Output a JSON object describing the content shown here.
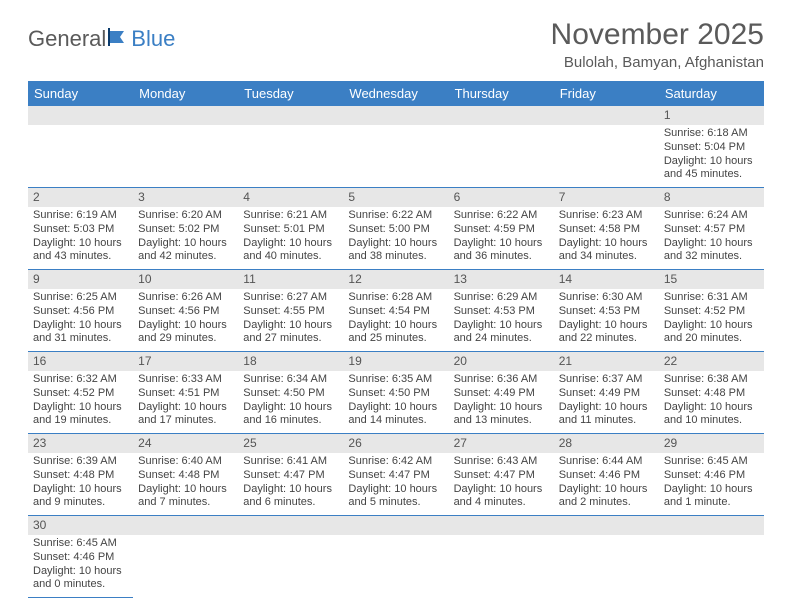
{
  "logo": {
    "text1": "General",
    "text2": "Blue"
  },
  "title": "November 2025",
  "location": "Bulolah, Bamyan, Afghanistan",
  "colors": {
    "header_bg": "#3b7fc4",
    "header_text": "#ffffff",
    "daynum_bg": "#e7e7e7",
    "cell_border": "#3b7fc4",
    "body_text": "#444444",
    "title_text": "#5a5a5a"
  },
  "fonts": {
    "title_size_pt": 22,
    "location_size_pt": 11,
    "dayhead_size_pt": 10,
    "cell_size_pt": 8
  },
  "weekdays": [
    "Sunday",
    "Monday",
    "Tuesday",
    "Wednesday",
    "Thursday",
    "Friday",
    "Saturday"
  ],
  "weeks": [
    [
      null,
      null,
      null,
      null,
      null,
      null,
      {
        "n": "1",
        "sunrise": "Sunrise: 6:18 AM",
        "sunset": "Sunset: 5:04 PM",
        "day1": "Daylight: 10 hours",
        "day2": "and 45 minutes."
      }
    ],
    [
      {
        "n": "2",
        "sunrise": "Sunrise: 6:19 AM",
        "sunset": "Sunset: 5:03 PM",
        "day1": "Daylight: 10 hours",
        "day2": "and 43 minutes."
      },
      {
        "n": "3",
        "sunrise": "Sunrise: 6:20 AM",
        "sunset": "Sunset: 5:02 PM",
        "day1": "Daylight: 10 hours",
        "day2": "and 42 minutes."
      },
      {
        "n": "4",
        "sunrise": "Sunrise: 6:21 AM",
        "sunset": "Sunset: 5:01 PM",
        "day1": "Daylight: 10 hours",
        "day2": "and 40 minutes."
      },
      {
        "n": "5",
        "sunrise": "Sunrise: 6:22 AM",
        "sunset": "Sunset: 5:00 PM",
        "day1": "Daylight: 10 hours",
        "day2": "and 38 minutes."
      },
      {
        "n": "6",
        "sunrise": "Sunrise: 6:22 AM",
        "sunset": "Sunset: 4:59 PM",
        "day1": "Daylight: 10 hours",
        "day2": "and 36 minutes."
      },
      {
        "n": "7",
        "sunrise": "Sunrise: 6:23 AM",
        "sunset": "Sunset: 4:58 PM",
        "day1": "Daylight: 10 hours",
        "day2": "and 34 minutes."
      },
      {
        "n": "8",
        "sunrise": "Sunrise: 6:24 AM",
        "sunset": "Sunset: 4:57 PM",
        "day1": "Daylight: 10 hours",
        "day2": "and 32 minutes."
      }
    ],
    [
      {
        "n": "9",
        "sunrise": "Sunrise: 6:25 AM",
        "sunset": "Sunset: 4:56 PM",
        "day1": "Daylight: 10 hours",
        "day2": "and 31 minutes."
      },
      {
        "n": "10",
        "sunrise": "Sunrise: 6:26 AM",
        "sunset": "Sunset: 4:56 PM",
        "day1": "Daylight: 10 hours",
        "day2": "and 29 minutes."
      },
      {
        "n": "11",
        "sunrise": "Sunrise: 6:27 AM",
        "sunset": "Sunset: 4:55 PM",
        "day1": "Daylight: 10 hours",
        "day2": "and 27 minutes."
      },
      {
        "n": "12",
        "sunrise": "Sunrise: 6:28 AM",
        "sunset": "Sunset: 4:54 PM",
        "day1": "Daylight: 10 hours",
        "day2": "and 25 minutes."
      },
      {
        "n": "13",
        "sunrise": "Sunrise: 6:29 AM",
        "sunset": "Sunset: 4:53 PM",
        "day1": "Daylight: 10 hours",
        "day2": "and 24 minutes."
      },
      {
        "n": "14",
        "sunrise": "Sunrise: 6:30 AM",
        "sunset": "Sunset: 4:53 PM",
        "day1": "Daylight: 10 hours",
        "day2": "and 22 minutes."
      },
      {
        "n": "15",
        "sunrise": "Sunrise: 6:31 AM",
        "sunset": "Sunset: 4:52 PM",
        "day1": "Daylight: 10 hours",
        "day2": "and 20 minutes."
      }
    ],
    [
      {
        "n": "16",
        "sunrise": "Sunrise: 6:32 AM",
        "sunset": "Sunset: 4:52 PM",
        "day1": "Daylight: 10 hours",
        "day2": "and 19 minutes."
      },
      {
        "n": "17",
        "sunrise": "Sunrise: 6:33 AM",
        "sunset": "Sunset: 4:51 PM",
        "day1": "Daylight: 10 hours",
        "day2": "and 17 minutes."
      },
      {
        "n": "18",
        "sunrise": "Sunrise: 6:34 AM",
        "sunset": "Sunset: 4:50 PM",
        "day1": "Daylight: 10 hours",
        "day2": "and 16 minutes."
      },
      {
        "n": "19",
        "sunrise": "Sunrise: 6:35 AM",
        "sunset": "Sunset: 4:50 PM",
        "day1": "Daylight: 10 hours",
        "day2": "and 14 minutes."
      },
      {
        "n": "20",
        "sunrise": "Sunrise: 6:36 AM",
        "sunset": "Sunset: 4:49 PM",
        "day1": "Daylight: 10 hours",
        "day2": "and 13 minutes."
      },
      {
        "n": "21",
        "sunrise": "Sunrise: 6:37 AM",
        "sunset": "Sunset: 4:49 PM",
        "day1": "Daylight: 10 hours",
        "day2": "and 11 minutes."
      },
      {
        "n": "22",
        "sunrise": "Sunrise: 6:38 AM",
        "sunset": "Sunset: 4:48 PM",
        "day1": "Daylight: 10 hours",
        "day2": "and 10 minutes."
      }
    ],
    [
      {
        "n": "23",
        "sunrise": "Sunrise: 6:39 AM",
        "sunset": "Sunset: 4:48 PM",
        "day1": "Daylight: 10 hours",
        "day2": "and 9 minutes."
      },
      {
        "n": "24",
        "sunrise": "Sunrise: 6:40 AM",
        "sunset": "Sunset: 4:48 PM",
        "day1": "Daylight: 10 hours",
        "day2": "and 7 minutes."
      },
      {
        "n": "25",
        "sunrise": "Sunrise: 6:41 AM",
        "sunset": "Sunset: 4:47 PM",
        "day1": "Daylight: 10 hours",
        "day2": "and 6 minutes."
      },
      {
        "n": "26",
        "sunrise": "Sunrise: 6:42 AM",
        "sunset": "Sunset: 4:47 PM",
        "day1": "Daylight: 10 hours",
        "day2": "and 5 minutes."
      },
      {
        "n": "27",
        "sunrise": "Sunrise: 6:43 AM",
        "sunset": "Sunset: 4:47 PM",
        "day1": "Daylight: 10 hours",
        "day2": "and 4 minutes."
      },
      {
        "n": "28",
        "sunrise": "Sunrise: 6:44 AM",
        "sunset": "Sunset: 4:46 PM",
        "day1": "Daylight: 10 hours",
        "day2": "and 2 minutes."
      },
      {
        "n": "29",
        "sunrise": "Sunrise: 6:45 AM",
        "sunset": "Sunset: 4:46 PM",
        "day1": "Daylight: 10 hours",
        "day2": "and 1 minute."
      }
    ],
    [
      {
        "n": "30",
        "sunrise": "Sunrise: 6:45 AM",
        "sunset": "Sunset: 4:46 PM",
        "day1": "Daylight: 10 hours",
        "day2": "and 0 minutes."
      },
      null,
      null,
      null,
      null,
      null,
      null
    ]
  ]
}
